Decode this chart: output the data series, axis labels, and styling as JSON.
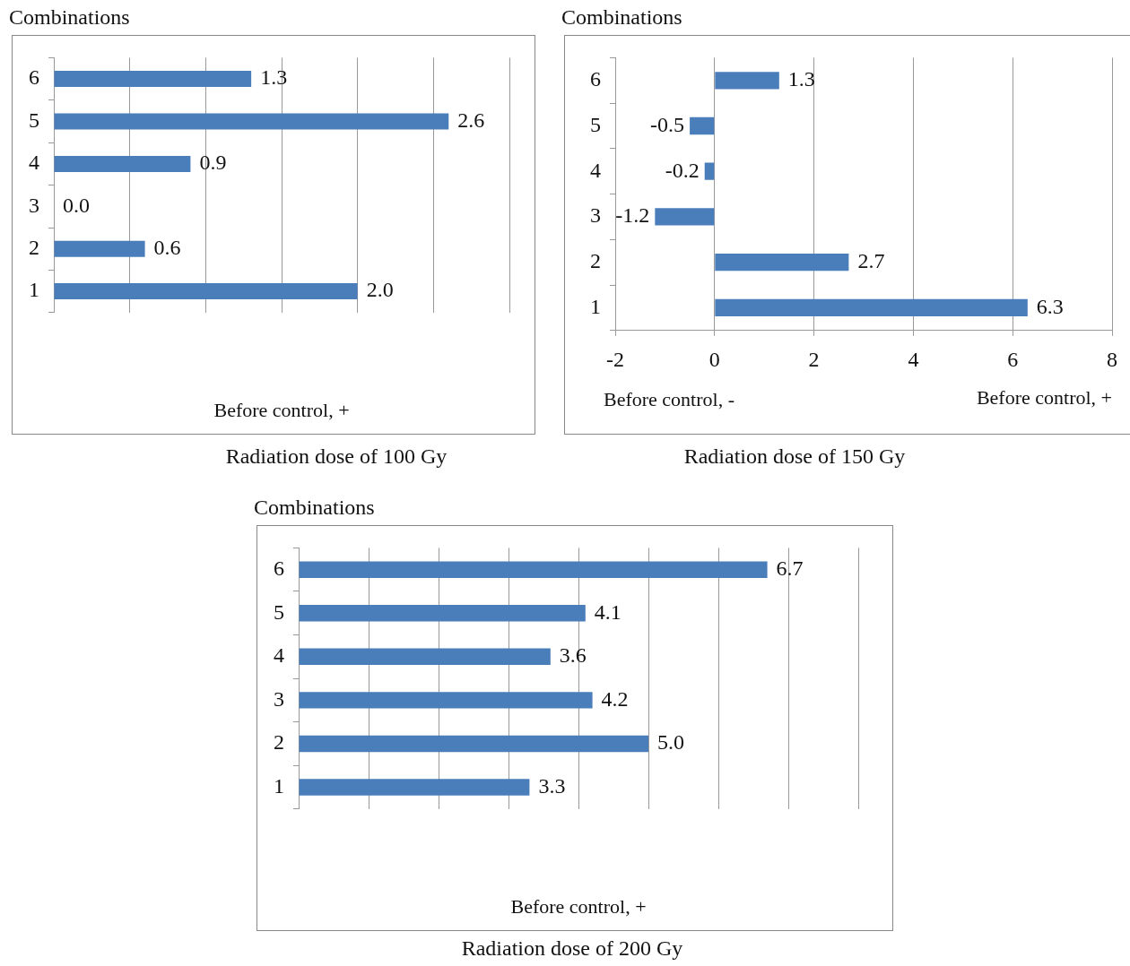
{
  "chart_data": [
    {
      "type": "bar",
      "orientation": "horizontal",
      "title": "Radiation dose of 100 Gy",
      "ylabel": "Combinations",
      "xlabel": "Before control, +",
      "categories": [
        "6",
        "5",
        "4",
        "3",
        "2",
        "1"
      ],
      "series": [
        {
          "color": "#4a7ebb",
          "values": [
            1.3,
            2.6,
            0.9,
            0.0,
            0.6,
            2.0
          ],
          "value_labels": [
            "1.3",
            "2.6",
            "0.9",
            "0.0",
            "0.6",
            "2.0"
          ]
        }
      ],
      "xlim": [
        0,
        3
      ],
      "xticks": [
        {
          "value": 0,
          "label": null
        },
        {
          "value": 0.5,
          "label": null
        },
        {
          "value": 1,
          "label": null
        },
        {
          "value": 1.5,
          "label": null
        },
        {
          "value": 2,
          "label": null
        },
        {
          "value": 2.5,
          "label": null
        },
        {
          "value": 3,
          "label": null
        }
      ],
      "tick_labels": "y",
      "grid": "x",
      "legend": false
    },
    {
      "type": "bar",
      "orientation": "horizontal",
      "title": "Radiation dose of 150 Gy",
      "ylabel": "Combinations",
      "xlabel": "Before control, +",
      "annotations": [
        "Before control, -"
      ],
      "categories": [
        "6",
        "5",
        "4",
        "3",
        "2",
        "1"
      ],
      "series": [
        {
          "color": "#4a7ebb",
          "values": [
            1.3,
            -0.5,
            -0.2,
            -1.2,
            2.7,
            6.3
          ],
          "value_labels": [
            "1.3",
            "-0.5",
            "-0.2",
            "-1.2",
            "2.7",
            "6.3"
          ]
        }
      ],
      "xlim": [
        -2,
        8
      ],
      "xticks": [
        -2,
        0,
        2,
        4,
        6,
        8
      ],
      "grid": "x",
      "legend": false
    },
    {
      "type": "bar",
      "orientation": "horizontal",
      "title": "Radiation dose of 200 Gy",
      "ylabel": "Combinations",
      "xlabel": "Before control, +",
      "categories": [
        "6",
        "5",
        "4",
        "3",
        "2",
        "1"
      ],
      "series": [
        {
          "color": "#4a7ebb",
          "values": [
            6.7,
            4.1,
            3.6,
            4.2,
            5.0,
            3.3
          ],
          "value_labels": [
            "6.7",
            "4.1",
            "3.6",
            "4.2",
            "5.0",
            "3.3"
          ]
        }
      ],
      "xlim": [
        0,
        8
      ],
      "xticks": [
        {
          "value": 0,
          "label": null
        },
        {
          "value": 1,
          "label": null
        },
        {
          "value": 2,
          "label": null
        },
        {
          "value": 3,
          "label": null
        },
        {
          "value": 4,
          "label": null
        },
        {
          "value": 5,
          "label": null
        },
        {
          "value": 6,
          "label": null
        },
        {
          "value": 7,
          "label": null
        },
        {
          "value": 8,
          "label": null
        }
      ],
      "tick_labels": "y",
      "grid": "x",
      "legend": false
    }
  ]
}
